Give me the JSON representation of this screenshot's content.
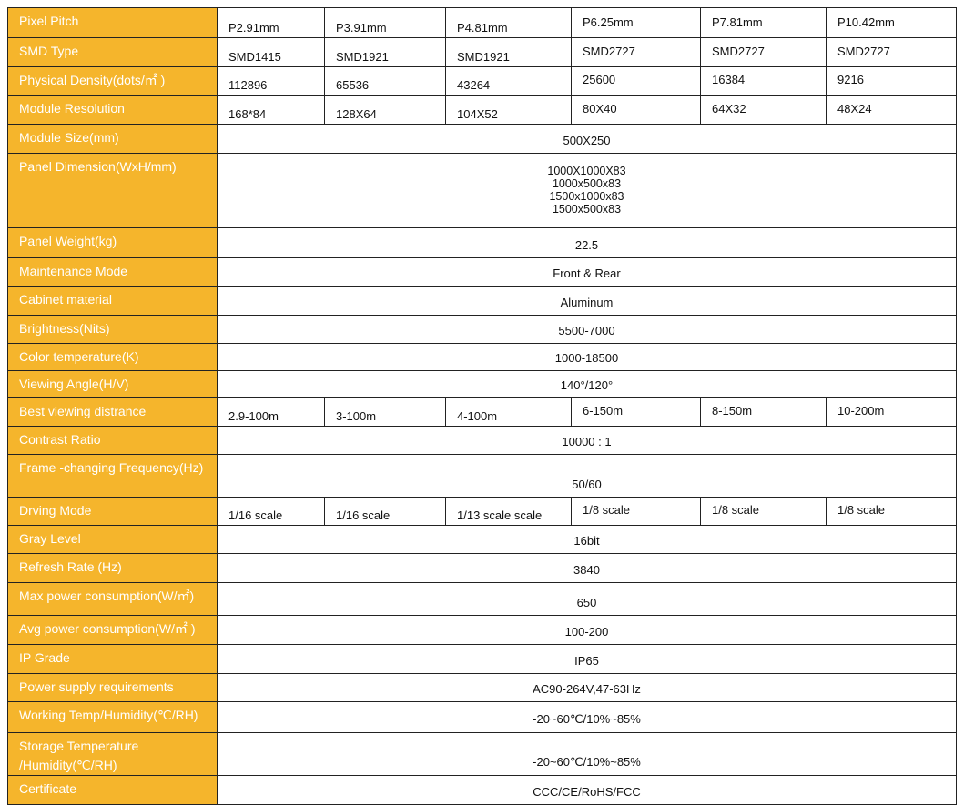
{
  "rows": [
    {
      "label": "Pixel Pitch",
      "values": [
        "P2.91mm",
        "P3.91mm",
        "P4.81mm",
        "P6.25mm",
        "P7.81mm",
        "P10.42mm"
      ]
    },
    {
      "label": "SMD Type",
      "values": [
        "SMD1415",
        "SMD1921",
        "SMD1921",
        "SMD2727",
        "SMD2727",
        "SMD2727"
      ]
    },
    {
      "label": "Physical Density(dots/㎡ )",
      "values": [
        "112896",
        "65536",
        "43264",
        "25600",
        "16384",
        "9216"
      ]
    },
    {
      "label": "Module Resolution",
      "values": [
        "168*84",
        "128X64",
        "104X52",
        "80X40",
        "64X32",
        "48X24"
      ]
    },
    {
      "label": "Module Size(mm)",
      "value": "500X250"
    },
    {
      "label": "Panel Dimension(WxH/mm)",
      "lines": [
        "1000X1000X83",
        "1000x500x83",
        "1500x1000x83",
        "1500x500x83"
      ]
    },
    {
      "label": "Panel Weight(kg)",
      "value": "22.5"
    },
    {
      "label": "Maintenance Mode",
      "value": "Front & Rear"
    },
    {
      "label": "Cabinet material",
      "value": "Aluminum"
    },
    {
      "label": "Brightness(Nits)",
      "value": "5500-7000"
    },
    {
      "label": "Color temperature(K)",
      "value": "1000-18500"
    },
    {
      "label": "Viewing Angle(H/V)",
      "value": "140°/120°"
    },
    {
      "label": "Best viewing distrance",
      "values": [
        "2.9-100m",
        "3-100m",
        "4-100m",
        "6-150m",
        "8-150m",
        "10-200m"
      ]
    },
    {
      "label": "Contrast Ratio",
      "value": "10000 : 1"
    },
    {
      "label": "Frame -changing Frequency(Hz)",
      "value": "50/60"
    },
    {
      "label": "Drving Mode",
      "values": [
        "1/16 scale",
        "1/16 scale",
        "1/13 scale scale",
        "1/8 scale",
        "1/8 scale",
        "1/8 scale"
      ]
    },
    {
      "label": "Gray Level",
      "value": "16bit"
    },
    {
      "label": "Refresh Rate (Hz)",
      "value": "3840"
    },
    {
      "label": "Max power consumption(W/㎡)",
      "value": "650"
    },
    {
      "label": "Avg power consumption(W/㎡ )",
      "value": "100-200"
    },
    {
      "label": "IP Grade",
      "value": "IP65"
    },
    {
      "label": "Power supply requirements",
      "value": "AC90-264V,47-63Hz"
    },
    {
      "label": "Working Temp/Humidity(℃/RH)",
      "value": "-20~60℃/10%~85%"
    },
    {
      "label": "Storage Temperature /Humidity(℃/RH)",
      "value": "-20~60℃/10%~85%"
    },
    {
      "label": "Certificate",
      "value": "CCC/CE/RoHS/FCC"
    }
  ],
  "colors": {
    "label_bg": "#F5B52C",
    "label_text": "#ffffff",
    "border": "#222222"
  }
}
